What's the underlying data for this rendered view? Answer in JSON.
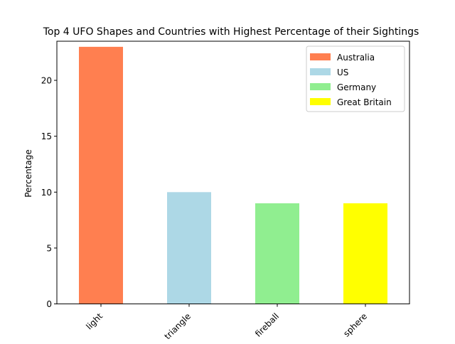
{
  "chart_data": {
    "type": "bar",
    "title": "Top 4 UFO Shapes and Countries with Highest Percentage of their Sightings",
    "xlabel": "",
    "ylabel": "Percentage",
    "categories": [
      "light",
      "triangle",
      "fireball",
      "sphere"
    ],
    "values": [
      23,
      10,
      9,
      9
    ],
    "bar_countries": [
      "Australia",
      "US",
      "Germany",
      "Great Britain"
    ],
    "colors": [
      "#ff7f50",
      "#add8e6",
      "#90ee90",
      "#ffff00"
    ],
    "ylim": [
      0,
      23.5
    ],
    "yticks": [
      0,
      5,
      10,
      15,
      20
    ],
    "grid": false,
    "legend": {
      "position": "top-right",
      "entries": [
        {
          "label": "Australia",
          "color": "#ff7f50"
        },
        {
          "label": "US",
          "color": "#add8e6"
        },
        {
          "label": "Germany",
          "color": "#90ee90"
        },
        {
          "label": "Great Britain",
          "color": "#ffff00"
        }
      ]
    }
  }
}
